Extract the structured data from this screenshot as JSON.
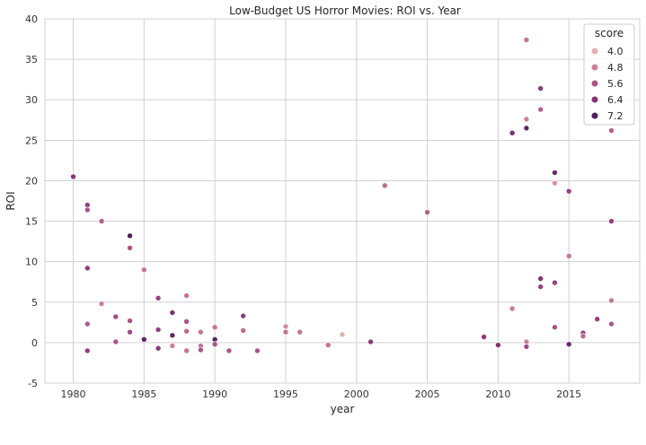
{
  "chart_data": {
    "type": "scatter",
    "title": "Low-Budget US Horror Movies: ROI vs. Year",
    "xlabel": "year",
    "ylabel": "ROI",
    "xlim": [
      1978,
      2020
    ],
    "ylim": [
      -5,
      40
    ],
    "xticks": [
      1980,
      1985,
      1990,
      1995,
      2000,
      2005,
      2010,
      2015
    ],
    "yticks": [
      -5,
      0,
      5,
      10,
      15,
      20,
      25,
      30,
      35,
      40
    ],
    "grid": true,
    "background": "#ffffff",
    "grid_color": "#d0d0d0",
    "legend": {
      "title": "score",
      "placement": "top-right",
      "entries": [
        {
          "label": "4.0",
          "value": 4.0
        },
        {
          "label": "4.8",
          "value": 4.8
        },
        {
          "label": "5.6",
          "value": 5.6
        },
        {
          "label": "6.4",
          "value": 6.4
        },
        {
          "label": "7.2",
          "value": 7.2
        }
      ]
    },
    "color_scale": {
      "variable": "score",
      "stops": [
        {
          "value": 3.6,
          "color": "#f0c8c0"
        },
        {
          "value": 4.4,
          "color": "#dc9aa0"
        },
        {
          "value": 5.2,
          "color": "#c0688c"
        },
        {
          "value": 6.0,
          "color": "#983f80"
        },
        {
          "value": 6.8,
          "color": "#6a2a6c"
        },
        {
          "value": 7.6,
          "color": "#2e1a48"
        }
      ]
    },
    "points": [
      {
        "x": 1980,
        "y": 20.5,
        "score": 6.3
      },
      {
        "x": 1981,
        "y": 17.0,
        "score": 6.0
      },
      {
        "x": 1981,
        "y": 16.4,
        "score": 5.6
      },
      {
        "x": 1981,
        "y": 9.2,
        "score": 6.1
      },
      {
        "x": 1981,
        "y": 2.3,
        "score": 5.5
      },
      {
        "x": 1981,
        "y": -1.0,
        "score": 6.0
      },
      {
        "x": 1982,
        "y": 15.0,
        "score": 5.4
      },
      {
        "x": 1982,
        "y": 4.8,
        "score": 4.8
      },
      {
        "x": 1983,
        "y": 3.2,
        "score": 5.8
      },
      {
        "x": 1983,
        "y": 0.1,
        "score": 5.6
      },
      {
        "x": 1984,
        "y": 13.2,
        "score": 7.3
      },
      {
        "x": 1984,
        "y": 11.7,
        "score": 5.6
      },
      {
        "x": 1984,
        "y": 2.7,
        "score": 5.6
      },
      {
        "x": 1984,
        "y": 1.3,
        "score": 5.8
      },
      {
        "x": 1985,
        "y": 9.0,
        "score": 5.0
      },
      {
        "x": 1985,
        "y": 0.4,
        "score": 7.0
      },
      {
        "x": 1986,
        "y": 5.5,
        "score": 6.0
      },
      {
        "x": 1986,
        "y": 1.6,
        "score": 6.0
      },
      {
        "x": 1986,
        "y": -0.7,
        "score": 6.2
      },
      {
        "x": 1987,
        "y": 3.7,
        "score": 6.5
      },
      {
        "x": 1987,
        "y": 0.9,
        "score": 7.0
      },
      {
        "x": 1987,
        "y": -0.4,
        "score": 4.8
      },
      {
        "x": 1988,
        "y": 5.8,
        "score": 5.0
      },
      {
        "x": 1988,
        "y": 2.6,
        "score": 5.6
      },
      {
        "x": 1988,
        "y": 1.4,
        "score": 5.2
      },
      {
        "x": 1988,
        "y": -1.0,
        "score": 5.0
      },
      {
        "x": 1989,
        "y": 1.3,
        "score": 5.0
      },
      {
        "x": 1989,
        "y": -0.4,
        "score": 5.0
      },
      {
        "x": 1989,
        "y": -0.9,
        "score": 5.6
      },
      {
        "x": 1990,
        "y": 1.9,
        "score": 5.0
      },
      {
        "x": 1990,
        "y": 0.4,
        "score": 7.1
      },
      {
        "x": 1990,
        "y": -0.2,
        "score": 5.6
      },
      {
        "x": 1991,
        "y": -1.0,
        "score": 5.6
      },
      {
        "x": 1992,
        "y": 3.3,
        "score": 6.2
      },
      {
        "x": 1992,
        "y": 1.5,
        "score": 5.2
      },
      {
        "x": 1993,
        "y": -1.0,
        "score": 5.6
      },
      {
        "x": 1995,
        "y": 2.0,
        "score": 4.6
      },
      {
        "x": 1995,
        "y": 1.3,
        "score": 5.0
      },
      {
        "x": 1996,
        "y": 1.3,
        "score": 5.0
      },
      {
        "x": 1998,
        "y": -0.3,
        "score": 5.0
      },
      {
        "x": 1999,
        "y": 1.0,
        "score": 4.0
      },
      {
        "x": 2001,
        "y": 0.1,
        "score": 6.2
      },
      {
        "x": 2002,
        "y": 19.4,
        "score": 5.2
      },
      {
        "x": 2005,
        "y": 16.1,
        "score": 5.4
      },
      {
        "x": 2009,
        "y": 0.7,
        "score": 6.2
      },
      {
        "x": 2010,
        "y": -0.3,
        "score": 6.4
      },
      {
        "x": 2011,
        "y": 25.9,
        "score": 6.6
      },
      {
        "x": 2011,
        "y": 4.2,
        "score": 4.9
      },
      {
        "x": 2012,
        "y": 37.4,
        "score": 5.0
      },
      {
        "x": 2012,
        "y": 27.6,
        "score": 4.8
      },
      {
        "x": 2012,
        "y": 26.5,
        "score": 7.0
      },
      {
        "x": 2012,
        "y": 0.1,
        "score": 4.8
      },
      {
        "x": 2012,
        "y": -0.5,
        "score": 5.8
      },
      {
        "x": 2013,
        "y": 31.4,
        "score": 6.2
      },
      {
        "x": 2013,
        "y": 28.8,
        "score": 5.4
      },
      {
        "x": 2013,
        "y": 7.9,
        "score": 6.4
      },
      {
        "x": 2013,
        "y": 6.9,
        "score": 6.0
      },
      {
        "x": 2014,
        "y": 21.0,
        "score": 6.8
      },
      {
        "x": 2014,
        "y": 19.7,
        "score": 4.5
      },
      {
        "x": 2014,
        "y": 7.4,
        "score": 6.0
      },
      {
        "x": 2014,
        "y": 1.9,
        "score": 5.6
      },
      {
        "x": 2015,
        "y": 18.7,
        "score": 6.0
      },
      {
        "x": 2015,
        "y": 10.7,
        "score": 5.0
      },
      {
        "x": 2015,
        "y": -0.2,
        "score": 6.8
      },
      {
        "x": 2016,
        "y": 1.2,
        "score": 6.0
      },
      {
        "x": 2016,
        "y": 0.8,
        "score": 5.2
      },
      {
        "x": 2017,
        "y": 2.9,
        "score": 6.0
      },
      {
        "x": 2018,
        "y": 26.2,
        "score": 5.4
      },
      {
        "x": 2018,
        "y": 15.0,
        "score": 6.0
      },
      {
        "x": 2018,
        "y": 5.2,
        "score": 5.0
      },
      {
        "x": 2018,
        "y": 2.3,
        "score": 5.6
      }
    ]
  }
}
